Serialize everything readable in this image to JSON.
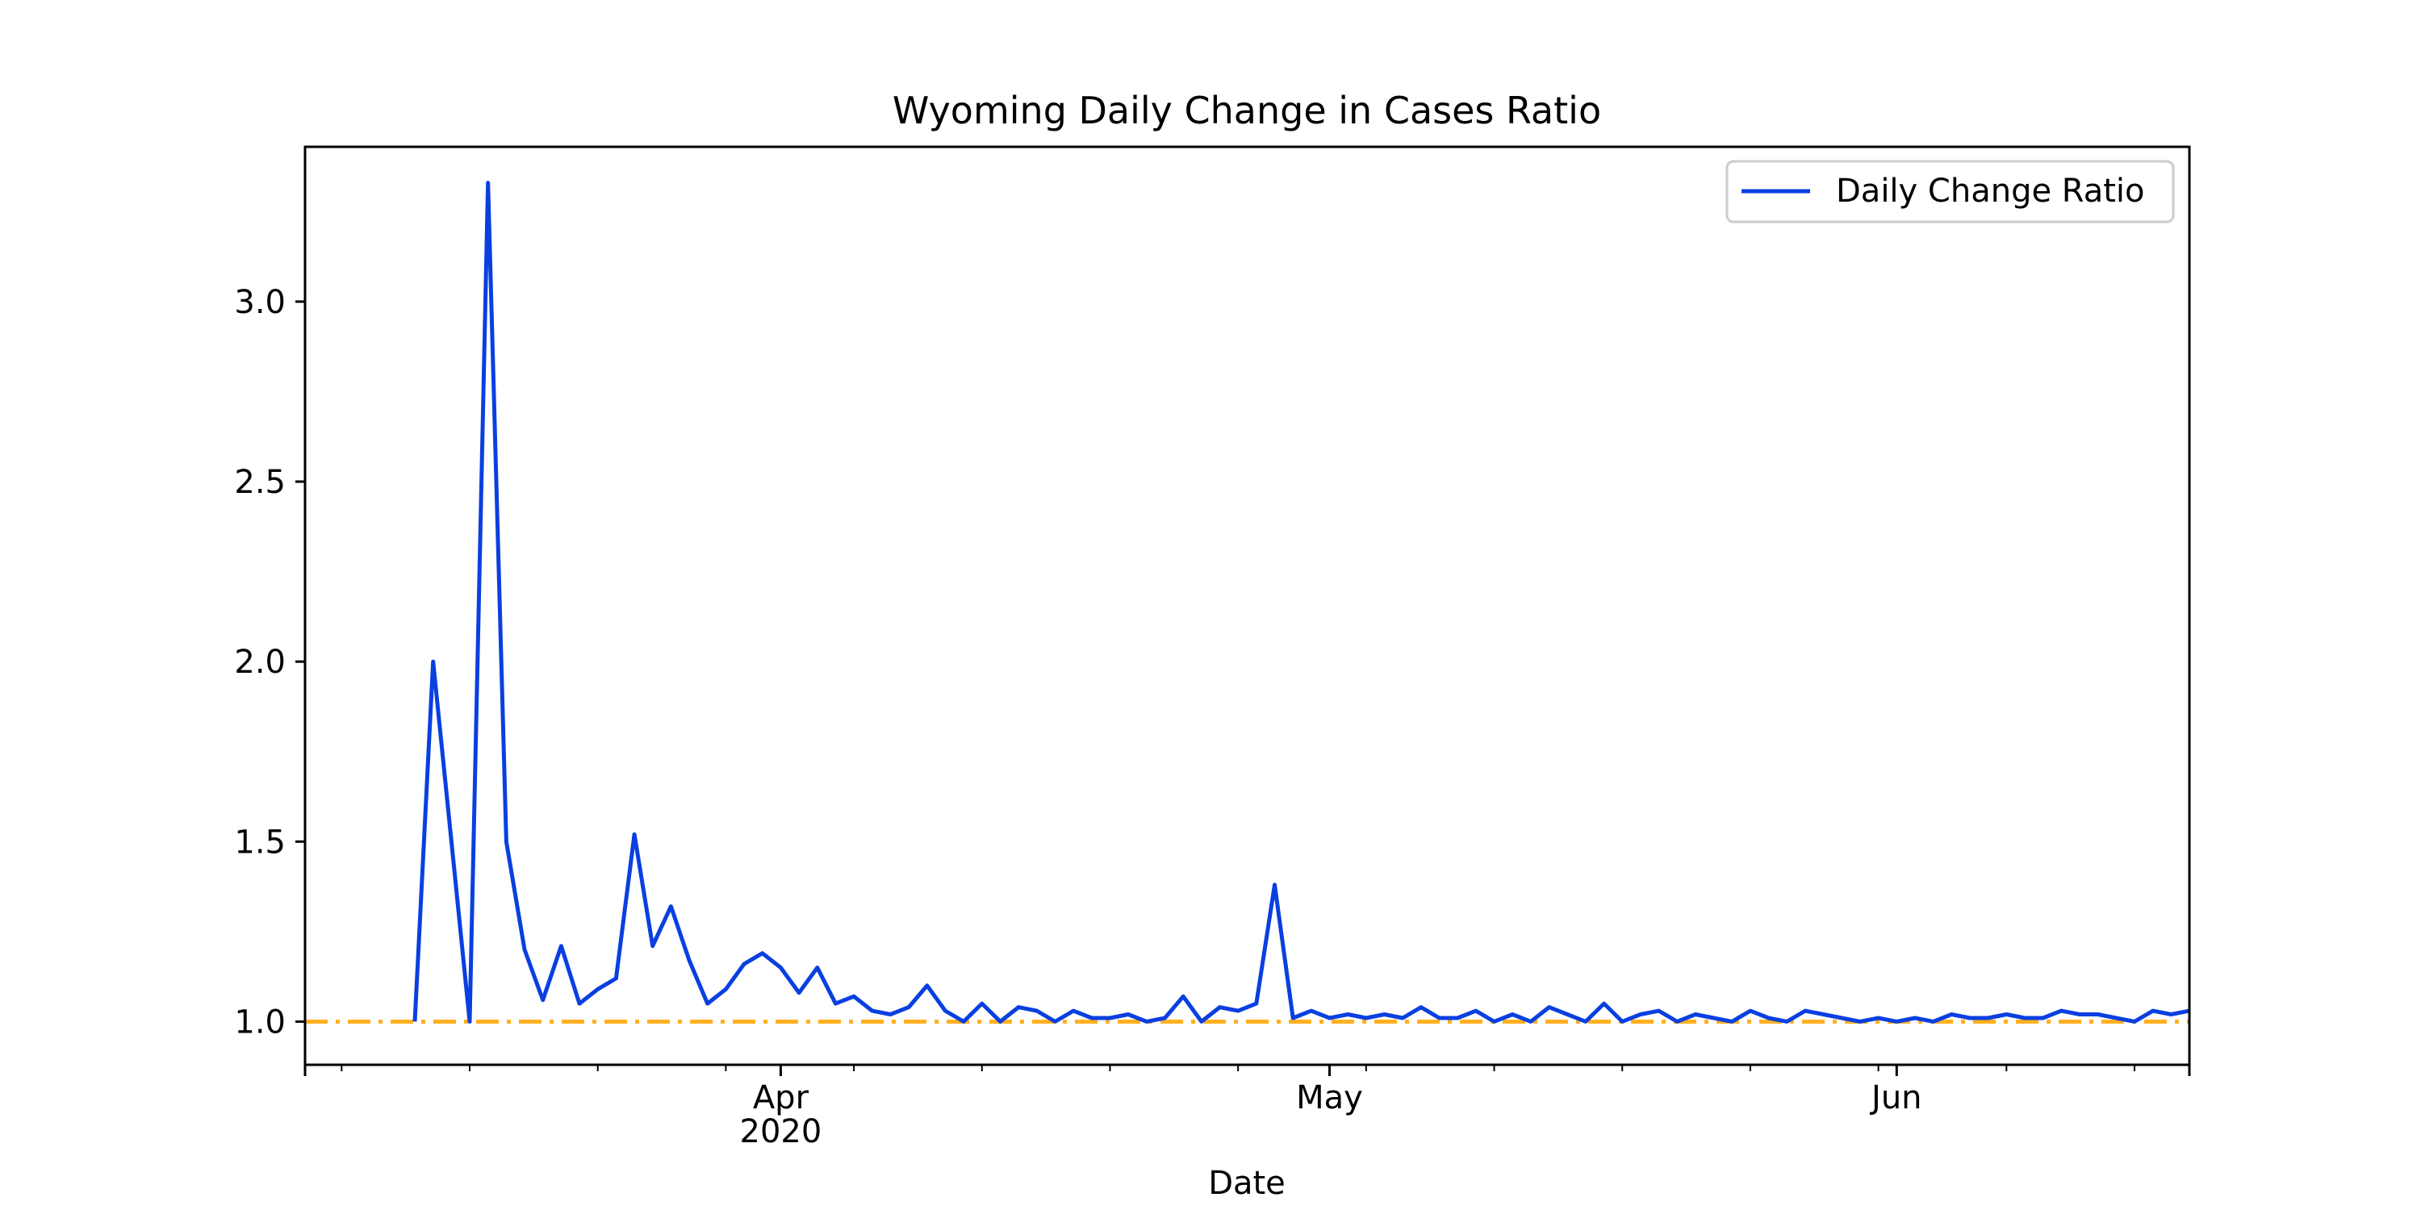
{
  "chart_data": {
    "type": "line",
    "title": "Wyoming Daily Change in Cases Ratio",
    "xlabel": "Date",
    "ylabel": "",
    "x_start": "2020-03-06",
    "x_end": "2020-06-17",
    "ylim": [
      0.88,
      3.43
    ],
    "yticks": [
      1.0,
      1.5,
      2.0,
      2.5,
      3.0
    ],
    "xticks_major": [
      {
        "date": "2020-04-01",
        "label": "Apr",
        "sublabel": "2020"
      },
      {
        "date": "2020-05-01",
        "label": "May",
        "sublabel": ""
      },
      {
        "date": "2020-06-01",
        "label": "Jun",
        "sublabel": ""
      }
    ],
    "xticks_minor": [
      "2020-03-08",
      "2020-03-15",
      "2020-03-22",
      "2020-03-29",
      "2020-04-05",
      "2020-04-12",
      "2020-04-19",
      "2020-04-26",
      "2020-05-03",
      "2020-05-10",
      "2020-05-17",
      "2020-05-24",
      "2020-05-31",
      "2020-06-07",
      "2020-06-14"
    ],
    "grid": false,
    "legend_position": "top-right",
    "series": [
      {
        "name": "Daily Change Ratio",
        "color": "#0a3fe0",
        "x": [
          "2020-03-12",
          "2020-03-13",
          "2020-03-14",
          "2020-03-15",
          "2020-03-16",
          "2020-03-17",
          "2020-03-18",
          "2020-03-19",
          "2020-03-20",
          "2020-03-21",
          "2020-03-22",
          "2020-03-23",
          "2020-03-24",
          "2020-03-25",
          "2020-03-26",
          "2020-03-27",
          "2020-03-28",
          "2020-03-29",
          "2020-03-30",
          "2020-03-31",
          "2020-04-01",
          "2020-04-02",
          "2020-04-03",
          "2020-04-04",
          "2020-04-05",
          "2020-04-06",
          "2020-04-07",
          "2020-04-08",
          "2020-04-09",
          "2020-04-10",
          "2020-04-11",
          "2020-04-12",
          "2020-04-13",
          "2020-04-14",
          "2020-04-15",
          "2020-04-16",
          "2020-04-17",
          "2020-04-18",
          "2020-04-19",
          "2020-04-20",
          "2020-04-21",
          "2020-04-22",
          "2020-04-23",
          "2020-04-24",
          "2020-04-25",
          "2020-04-26",
          "2020-04-27",
          "2020-04-28",
          "2020-04-29",
          "2020-04-30",
          "2020-05-01",
          "2020-05-02",
          "2020-05-03",
          "2020-05-04",
          "2020-05-05",
          "2020-05-06",
          "2020-05-07",
          "2020-05-08",
          "2020-05-09",
          "2020-05-10",
          "2020-05-11",
          "2020-05-12",
          "2020-05-13",
          "2020-05-14",
          "2020-05-15",
          "2020-05-16",
          "2020-05-17",
          "2020-05-18",
          "2020-05-19",
          "2020-05-20",
          "2020-05-21",
          "2020-05-22",
          "2020-05-23",
          "2020-05-24",
          "2020-05-25",
          "2020-05-26",
          "2020-05-27",
          "2020-05-28",
          "2020-05-29",
          "2020-05-30",
          "2020-05-31",
          "2020-06-01",
          "2020-06-02",
          "2020-06-03",
          "2020-06-04",
          "2020-06-05",
          "2020-06-06",
          "2020-06-07",
          "2020-06-08",
          "2020-06-09",
          "2020-06-10",
          "2020-06-11",
          "2020-06-12",
          "2020-06-13",
          "2020-06-14",
          "2020-06-15",
          "2020-06-16",
          "2020-06-17"
        ],
        "y": [
          1.0,
          2.0,
          1.5,
          1.0,
          3.33,
          1.5,
          1.2,
          1.06,
          1.21,
          1.05,
          1.09,
          1.12,
          1.52,
          1.21,
          1.32,
          1.17,
          1.05,
          1.09,
          1.16,
          1.19,
          1.15,
          1.08,
          1.15,
          1.05,
          1.07,
          1.03,
          1.02,
          1.04,
          1.1,
          1.03,
          1.0,
          1.05,
          1.0,
          1.04,
          1.03,
          1.0,
          1.03,
          1.01,
          1.01,
          1.02,
          1.0,
          1.01,
          1.07,
          1.0,
          1.04,
          1.03,
          1.05,
          1.38,
          1.01,
          1.03,
          1.01,
          1.02,
          1.01,
          1.02,
          1.01,
          1.04,
          1.01,
          1.01,
          1.03,
          1.0,
          1.02,
          1.0,
          1.04,
          1.02,
          1.0,
          1.05,
          1.0,
          1.02,
          1.03,
          1.0,
          1.02,
          1.01,
          1.0,
          1.03,
          1.01,
          1.0,
          1.03,
          1.02,
          1.01,
          1.0,
          1.01,
          1.0,
          1.01,
          1.0,
          1.02,
          1.01,
          1.01,
          1.02,
          1.01,
          1.01,
          1.03,
          1.02,
          1.02,
          1.01,
          1.0,
          1.03,
          1.02,
          1.03
        ]
      }
    ],
    "reference_line": {
      "y": 1.0,
      "color": "#ffb020",
      "style": "dash-dot"
    }
  }
}
